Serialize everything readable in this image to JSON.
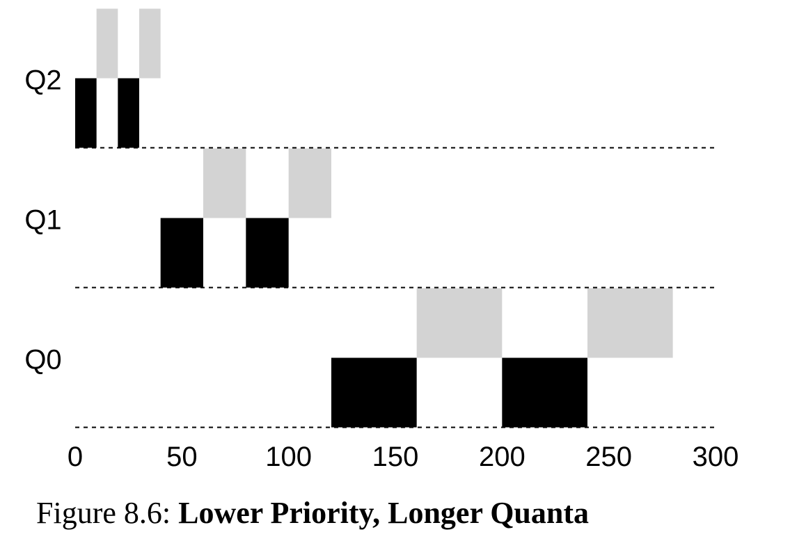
{
  "chart_data": {
    "type": "timeline",
    "x_ticks": [
      0,
      50,
      100,
      150,
      200,
      250,
      300
    ],
    "xlim": [
      0,
      300
    ],
    "queues": [
      "Q2",
      "Q1",
      "Q0"
    ],
    "colors": {
      "job_a": "#000000",
      "job_b": "#d3d3d3",
      "baseline": "#000000"
    },
    "grid": "dashed baseline under each queue",
    "segments": [
      {
        "queue": "Q2",
        "job": "A",
        "start": 0,
        "end": 10,
        "color": "#000000"
      },
      {
        "queue": "Q2",
        "job": "B",
        "start": 10,
        "end": 20,
        "color": "#d3d3d3"
      },
      {
        "queue": "Q2",
        "job": "A",
        "start": 20,
        "end": 30,
        "color": "#000000"
      },
      {
        "queue": "Q2",
        "job": "B",
        "start": 30,
        "end": 40,
        "color": "#d3d3d3"
      },
      {
        "queue": "Q1",
        "job": "A",
        "start": 40,
        "end": 60,
        "color": "#000000"
      },
      {
        "queue": "Q1",
        "job": "B",
        "start": 60,
        "end": 80,
        "color": "#d3d3d3"
      },
      {
        "queue": "Q1",
        "job": "A",
        "start": 80,
        "end": 100,
        "color": "#000000"
      },
      {
        "queue": "Q1",
        "job": "B",
        "start": 100,
        "end": 120,
        "color": "#d3d3d3"
      },
      {
        "queue": "Q0",
        "job": "A",
        "start": 120,
        "end": 160,
        "color": "#000000"
      },
      {
        "queue": "Q0",
        "job": "B",
        "start": 160,
        "end": 200,
        "color": "#d3d3d3"
      },
      {
        "queue": "Q0",
        "job": "A",
        "start": 200,
        "end": 240,
        "color": "#000000"
      },
      {
        "queue": "Q0",
        "job": "B",
        "start": 240,
        "end": 280,
        "color": "#d3d3d3"
      }
    ]
  },
  "caption": {
    "prefix": "Figure 8.6: ",
    "title": "Lower Priority, Longer Quanta"
  }
}
